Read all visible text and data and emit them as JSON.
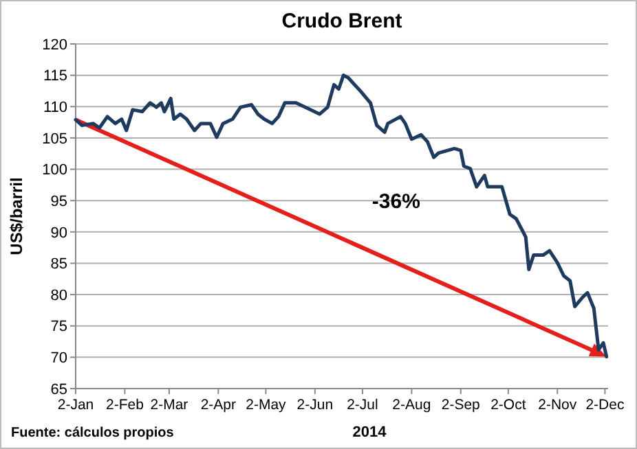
{
  "chart_data": {
    "type": "line",
    "title": "Crudo Brent",
    "xlabel": "2014",
    "ylabel": "US$/barril",
    "annotations": [
      "-36%",
      "Fuente: cálculos propios"
    ],
    "series": [
      {
        "color": "#1f3a5f",
        "x": [
          "2014-01-02",
          "2014-01-06",
          "2014-01-13",
          "2014-01-17",
          "2014-01-22",
          "2014-01-27",
          "2014-01-31",
          "2014-02-03",
          "2014-02-07",
          "2014-02-13",
          "2014-02-18",
          "2014-02-22",
          "2014-02-25",
          "2014-02-27",
          "2014-03-03",
          "2014-03-05",
          "2014-03-09",
          "2014-03-13",
          "2014-03-18",
          "2014-03-22",
          "2014-03-28",
          "2014-04-01",
          "2014-04-05",
          "2014-04-11",
          "2014-04-16",
          "2014-04-23",
          "2014-04-27",
          "2014-05-01",
          "2014-05-06",
          "2014-05-10",
          "2014-05-14",
          "2014-05-21",
          "2014-05-27",
          "2014-06-05",
          "2014-06-10",
          "2014-06-14",
          "2014-06-17",
          "2014-06-20",
          "2014-06-23",
          "2014-07-01",
          "2014-07-07",
          "2014-07-11",
          "2014-07-16",
          "2014-07-18",
          "2014-07-26",
          "2014-07-29",
          "2014-08-02",
          "2014-08-08",
          "2014-08-12",
          "2014-08-16",
          "2014-08-19",
          "2014-08-29",
          "2014-09-02",
          "2014-09-04",
          "2014-09-08",
          "2014-09-12",
          "2014-09-17",
          "2014-09-19",
          "2014-09-28",
          "2014-10-03",
          "2014-10-07",
          "2014-10-13",
          "2014-10-15",
          "2014-10-18",
          "2014-10-24",
          "2014-10-28",
          "2014-11-02",
          "2014-11-06",
          "2014-11-10",
          "2014-11-13",
          "2014-11-18",
          "2014-11-21",
          "2014-11-25",
          "2014-11-28",
          "2014-12-01",
          "2014-12-03"
        ],
        "values": [
          107.9,
          107,
          107.3,
          106.6,
          108.4,
          107.3,
          108,
          106.2,
          109.5,
          109.2,
          110.6,
          109.9,
          110.6,
          109.2,
          111.3,
          108,
          108.8,
          108,
          106.2,
          107.3,
          107.3,
          105.1,
          107.3,
          108,
          109.9,
          110.3,
          108.8,
          108,
          107.3,
          108.4,
          110.6,
          110.6,
          109.9,
          108.8,
          109.9,
          113.5,
          112.8,
          115,
          114.6,
          112.4,
          110.6,
          107,
          105.9,
          107.3,
          108.4,
          107.3,
          104.8,
          105.5,
          104.4,
          101.9,
          102.6,
          103.3,
          103,
          100.5,
          100.1,
          97.2,
          99,
          97.2,
          97.2,
          92.8,
          92.1,
          89.2,
          84,
          86.3,
          86.3,
          87,
          85.1,
          83,
          82.2,
          78.1,
          79.6,
          80.3,
          77.8,
          71.2,
          72.3,
          70.1
        ]
      }
    ],
    "xlim": [
      "2014-01-02",
      "2014-12-04"
    ],
    "xticks": [
      {
        "value": "2014-01-02",
        "label": "2-Jan"
      },
      {
        "value": "2014-02-02",
        "label": "2-Feb"
      },
      {
        "value": "2014-03-02",
        "label": "2-Mar"
      },
      {
        "value": "2014-04-02",
        "label": "2-Apr"
      },
      {
        "value": "2014-05-02",
        "label": "2-May"
      },
      {
        "value": "2014-06-02",
        "label": "2-Jun"
      },
      {
        "value": "2014-07-02",
        "label": "2-Jul"
      },
      {
        "value": "2014-08-02",
        "label": "2-Aug"
      },
      {
        "value": "2014-09-02",
        "label": "2-Sep"
      },
      {
        "value": "2014-10-02",
        "label": "2-Oct"
      },
      {
        "value": "2014-11-02",
        "label": "2-Nov"
      },
      {
        "value": "2014-12-02",
        "label": "2-Dec"
      }
    ],
    "ylim": [
      65,
      120
    ],
    "yticks": [
      65,
      70,
      75,
      80,
      85,
      90,
      95,
      100,
      105,
      110,
      115,
      120
    ],
    "grid": "y",
    "line_style": "solid",
    "marker": "none"
  }
}
